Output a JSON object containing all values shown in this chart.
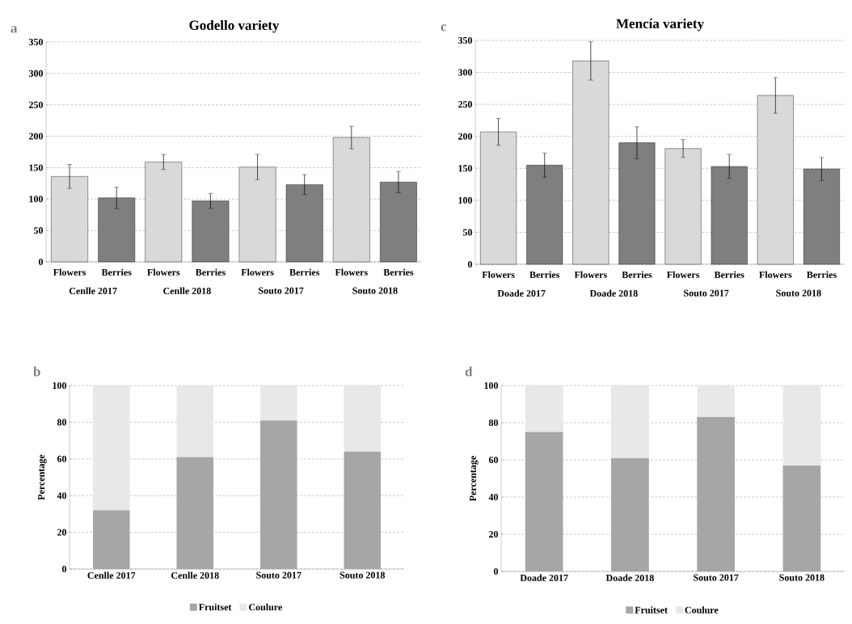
{
  "chart_data": [
    {
      "type": "bar",
      "title": "Godello variety",
      "annotations": [
        "a"
      ],
      "categories": [
        "Cenlle 2017",
        "Cenlle 2018",
        "Souto  2017",
        "Souto  2018"
      ],
      "series": [
        {
          "name": "Flowers",
          "color": "#d9d9d9",
          "values": [
            136,
            159,
            151,
            198
          ],
          "errors": [
            19,
            12,
            20,
            18
          ]
        },
        {
          "name": "Berries",
          "color": "#7f7f7f",
          "values": [
            102,
            97,
            123,
            127
          ],
          "errors": [
            17,
            12,
            16,
            17
          ]
        }
      ],
      "ylim": [
        0,
        350
      ],
      "yticks": [
        0,
        50,
        100,
        150,
        200,
        250,
        300,
        350
      ],
      "grid": "y"
    },
    {
      "type": "bar",
      "title": "Mencía variety",
      "annotations": [
        "c"
      ],
      "categories": [
        "Doade 2017",
        "Doade 2018",
        "Souto  2017",
        "Souto  2018"
      ],
      "series": [
        {
          "name": "Flowers",
          "color": "#d9d9d9",
          "values": [
            207,
            318,
            181,
            264
          ],
          "errors": [
            21,
            30,
            14,
            28
          ]
        },
        {
          "name": "Berries",
          "color": "#7f7f7f",
          "values": [
            155,
            190,
            153,
            149
          ],
          "errors": [
            19,
            25,
            19,
            18
          ]
        }
      ],
      "ylim": [
        0,
        350
      ],
      "yticks": [
        0,
        50,
        100,
        150,
        200,
        250,
        300,
        350
      ],
      "grid": "y"
    },
    {
      "type": "bar",
      "stacked": true,
      "ylabel": "Percentage",
      "annotations": [
        "b"
      ],
      "categories": [
        "Cenlle 2017",
        "Cenlle 2018",
        "Souto  2017",
        "Souto  2018"
      ],
      "series": [
        {
          "name": "Fruitset",
          "color": "#a6a6a6",
          "values": [
            32,
            61,
            81,
            64
          ]
        },
        {
          "name": "Coulure",
          "color": "#e8e8e8",
          "values": [
            68,
            39,
            19,
            36
          ]
        }
      ],
      "ylim": [
        0,
        100
      ],
      "yticks": [
        0,
        20,
        40,
        60,
        80,
        100
      ],
      "grid": "y",
      "legend": "bottom"
    },
    {
      "type": "bar",
      "stacked": true,
      "ylabel": "Percentage",
      "annotations": [
        "d"
      ],
      "categories": [
        "Doade 2017",
        "Doade 2018",
        "Souto  2017",
        "Souto  2018"
      ],
      "series": [
        {
          "name": "Fruitset",
          "color": "#a6a6a6",
          "values": [
            75,
            61,
            83,
            57
          ]
        },
        {
          "name": "Coulure",
          "color": "#e8e8e8",
          "values": [
            25,
            39,
            17,
            43
          ]
        }
      ],
      "ylim": [
        0,
        100
      ],
      "yticks": [
        0,
        20,
        40,
        60,
        80,
        100
      ],
      "grid": "y",
      "legend": "bottom"
    }
  ]
}
